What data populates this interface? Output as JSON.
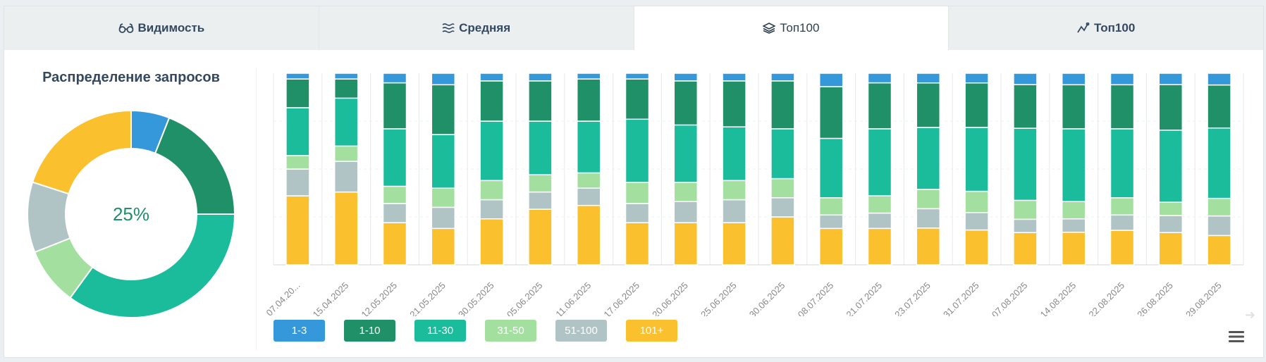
{
  "tabs": [
    {
      "label": "Видимость",
      "icon": "glasses-icon",
      "active": false
    },
    {
      "label": "Средняя",
      "icon": "wavy-lines-icon",
      "active": false
    },
    {
      "label": "Топ100",
      "icon": "layers-icon",
      "active": true
    },
    {
      "label": "Топ100",
      "icon": "line-chart-icon",
      "active": false
    }
  ],
  "donut": {
    "title": "Распределение запросов",
    "center_label": "25%"
  },
  "colors": {
    "1-3": "#3498db",
    "1-10": "#1f9068",
    "11-30": "#1abc9c",
    "31-50": "#a3e0a0",
    "51-100": "#b0c4c6",
    "101+": "#fbc02d"
  },
  "legend": [
    "1-3",
    "1-10",
    "11-30",
    "31-50",
    "51-100",
    "101+"
  ],
  "chart_data": [
    {
      "type": "pie",
      "title": "Распределение запросов",
      "center_label": "25%",
      "categories": [
        "1-3",
        "1-10",
        "11-30",
        "31-50",
        "51-100",
        "101+"
      ],
      "values": [
        6,
        19,
        35,
        9,
        11,
        20
      ]
    },
    {
      "type": "bar",
      "stacked": true,
      "percent": true,
      "categories": [
        "07.04.20...",
        "15.04.2025",
        "12.05.2025",
        "21.05.2025",
        "30.05.2025",
        "05.06.2025",
        "11.06.2025",
        "17.06.2025",
        "20.06.2025",
        "25.06.2025",
        "30.06.2025",
        "08.07.2025",
        "21.07.2025",
        "23.07.2025",
        "31.07.2025",
        "07.08.2025",
        "14.08.2025",
        "22.08.2025",
        "26.08.2025",
        "29.08.2025"
      ],
      "series": [
        {
          "name": "1-3",
          "values": [
            3,
            3,
            5,
            6,
            4,
            4,
            3,
            3,
            4,
            4,
            4,
            7,
            5,
            5,
            5,
            6,
            6,
            6,
            6,
            6
          ]
        },
        {
          "name": "1-10",
          "values": [
            15,
            10,
            24,
            26,
            21,
            21,
            22,
            21,
            23,
            24,
            25,
            27,
            24,
            23,
            23,
            23,
            23,
            23,
            24,
            22
          ]
        },
        {
          "name": "11-30",
          "values": [
            25,
            25,
            30,
            28,
            31,
            28,
            27,
            33,
            30,
            28,
            26,
            31,
            35,
            32,
            33,
            38,
            38,
            36,
            38,
            36
          ]
        },
        {
          "name": "31-50",
          "values": [
            7,
            8,
            9,
            10,
            10,
            9,
            8,
            11,
            10,
            10,
            10,
            9,
            9,
            10,
            11,
            10,
            9,
            9,
            7,
            9
          ]
        },
        {
          "name": "51-100",
          "values": [
            14,
            16,
            10,
            11,
            10,
            9,
            9,
            10,
            11,
            12,
            10,
            7,
            8,
            10,
            9,
            7,
            7,
            8,
            9,
            10
          ]
        },
        {
          "name": "101+",
          "values": [
            36,
            38,
            22,
            19,
            24,
            29,
            31,
            22,
            22,
            22,
            25,
            19,
            19,
            19,
            18,
            17,
            17,
            18,
            17,
            15
          ]
        }
      ],
      "ylim": [
        0,
        100
      ],
      "grid": true
    }
  ]
}
